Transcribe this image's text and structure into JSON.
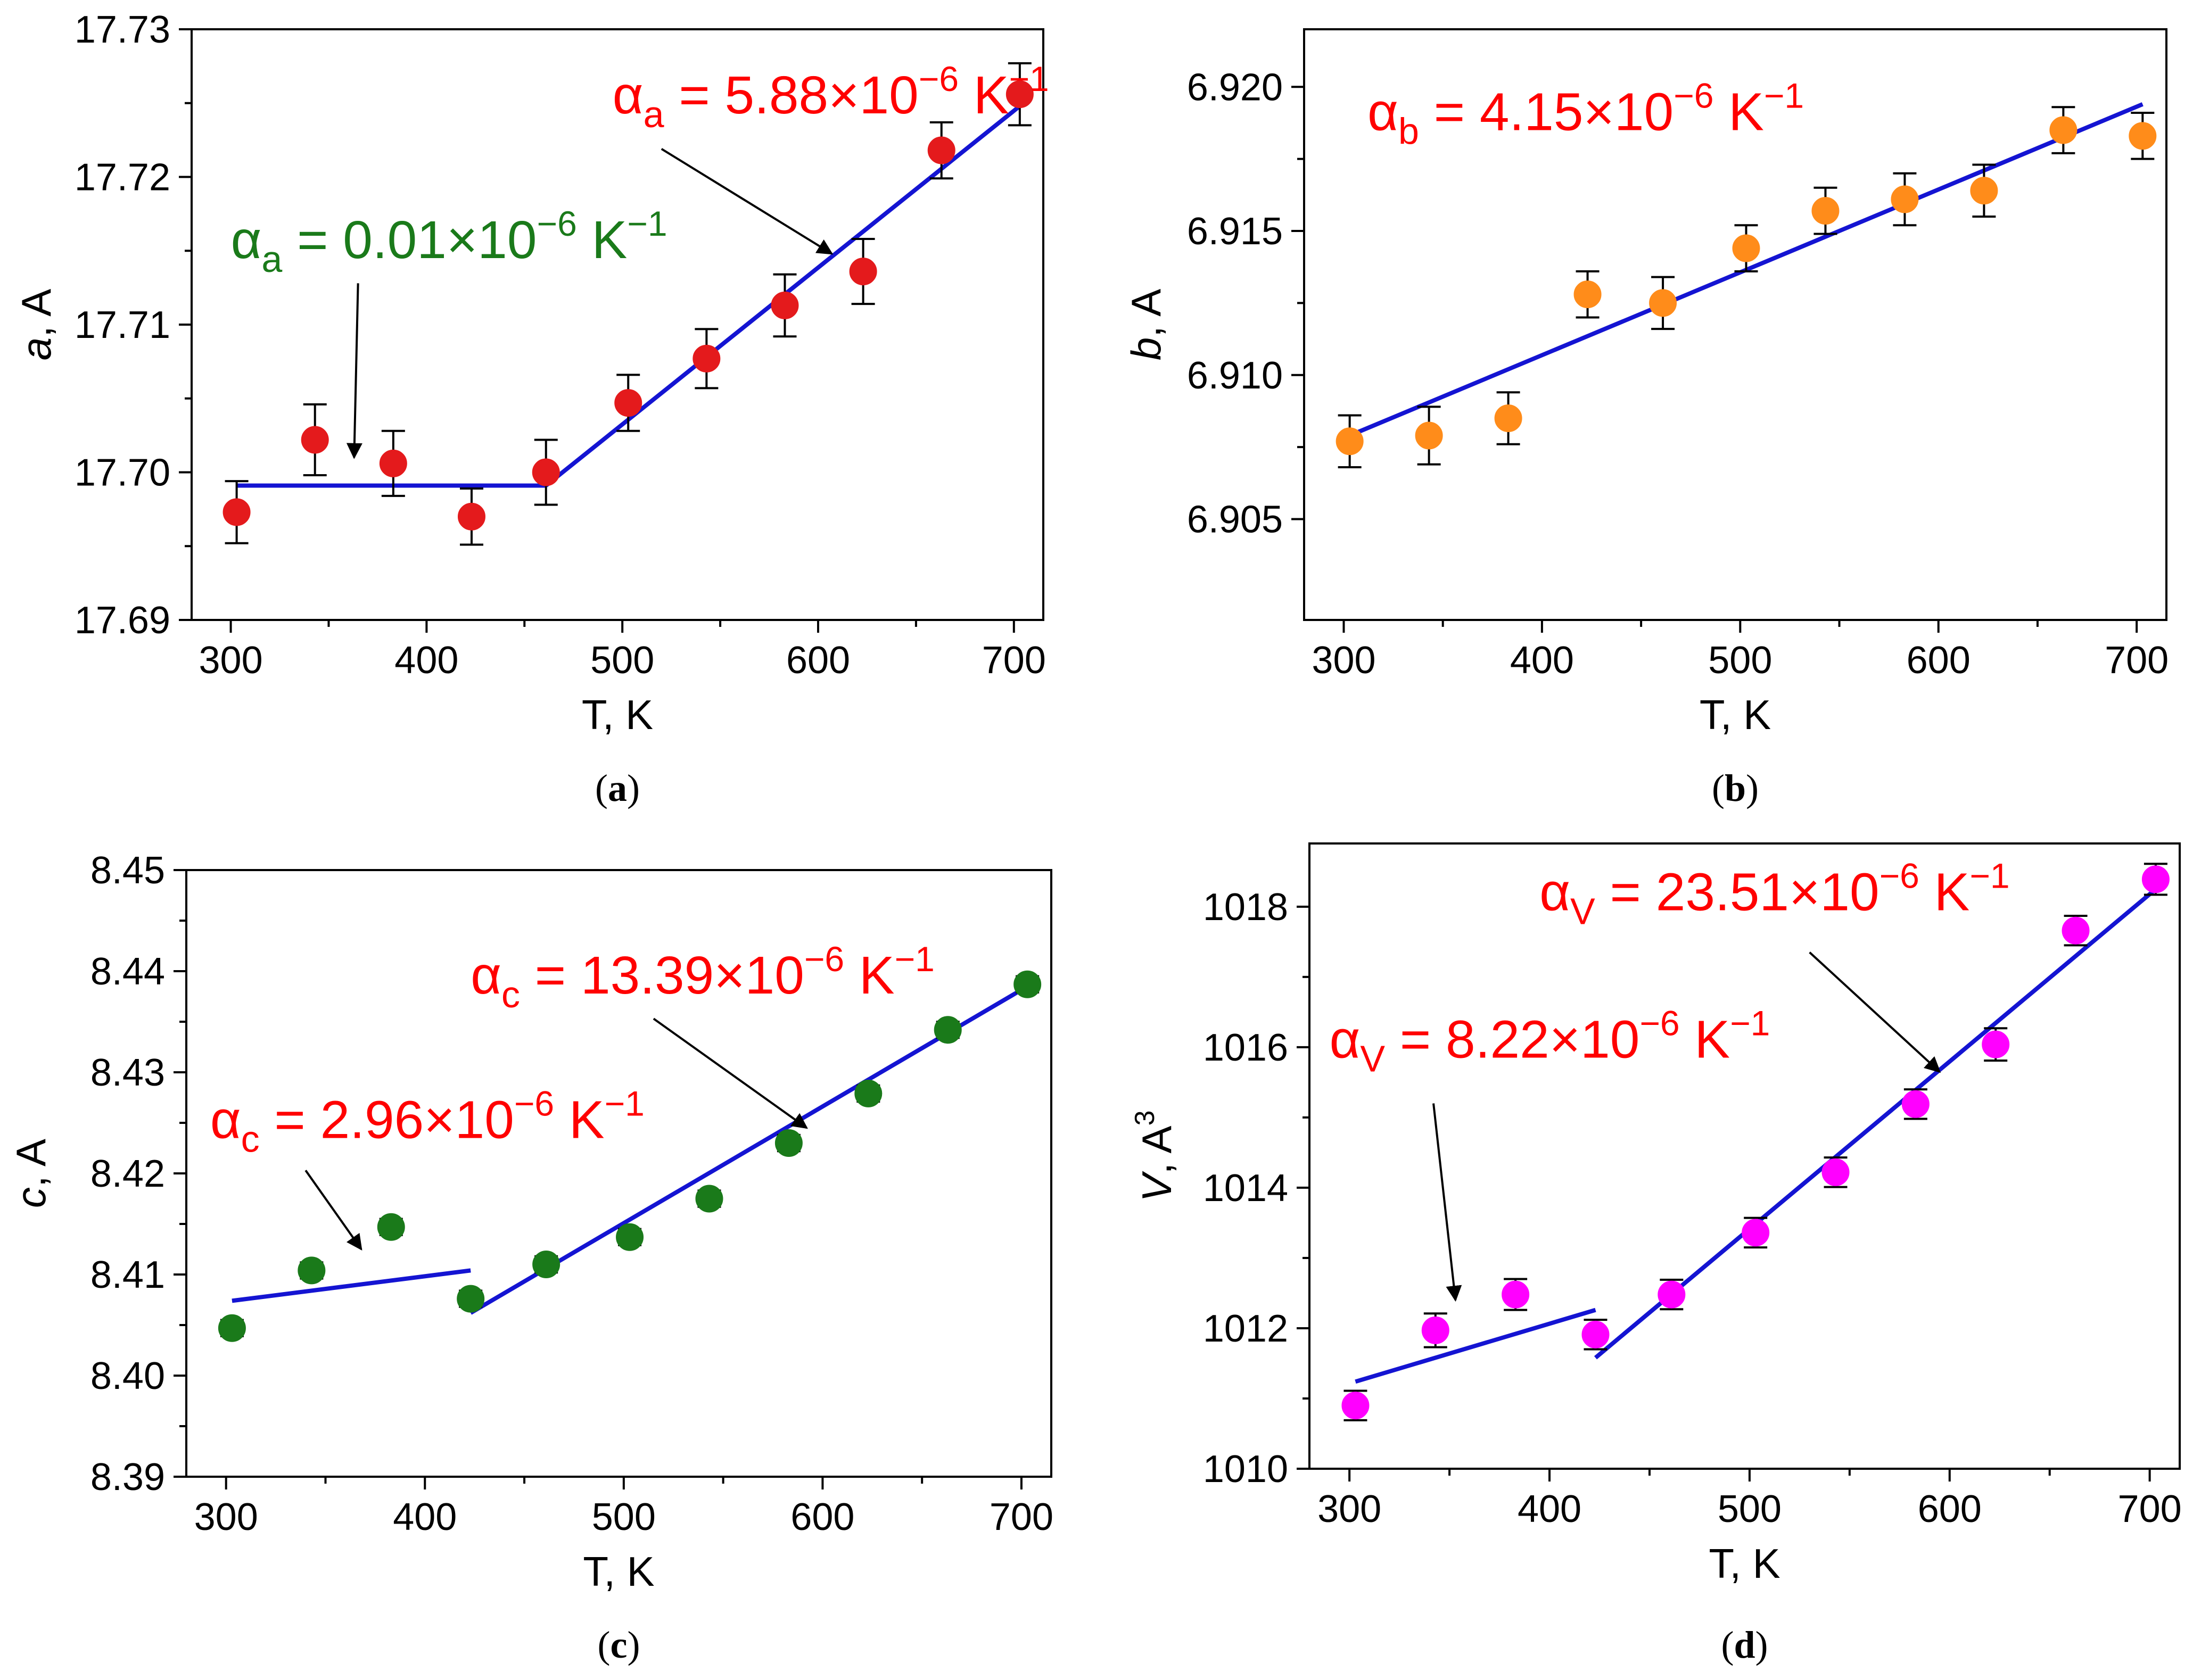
{
  "chart_data": [
    {
      "panel": "a",
      "caption_letter": "a",
      "type": "scatter",
      "xlabel": "T, K",
      "ylabel_var": "a",
      "ylabel_rest": ", A",
      "ylabel_sup": "",
      "xlim": [
        280,
        715
      ],
      "ylim": [
        17.69,
        17.73
      ],
      "xticks": [
        300,
        400,
        500,
        600,
        700
      ],
      "xtick_labels": [
        "300",
        "400",
        "500",
        "600",
        "700"
      ],
      "yticks": [
        17.69,
        17.7,
        17.71,
        17.72,
        17.73
      ],
      "ytick_labels": [
        "17.69",
        "17.70",
        "17.71",
        "17.72",
        "17.73"
      ],
      "marker_color": "#e41a1c",
      "points": [
        {
          "x": 303,
          "y": 17.6973,
          "err": 0.0021
        },
        {
          "x": 343,
          "y": 17.7022,
          "err": 0.0024
        },
        {
          "x": 383,
          "y": 17.7006,
          "err": 0.0022
        },
        {
          "x": 423,
          "y": 17.697,
          "err": 0.0019
        },
        {
          "x": 461,
          "y": 17.7,
          "err": 0.0022
        },
        {
          "x": 503,
          "y": 17.7047,
          "err": 0.0019
        },
        {
          "x": 543,
          "y": 17.7077,
          "err": 0.002
        },
        {
          "x": 583,
          "y": 17.7113,
          "err": 0.0021
        },
        {
          "x": 623,
          "y": 17.7136,
          "err": 0.0022
        },
        {
          "x": 663,
          "y": 17.7218,
          "err": 0.0019
        },
        {
          "x": 703,
          "y": 17.7256,
          "err": 0.0021
        }
      ],
      "fit_color": "#1414d2",
      "fits": [
        {
          "x": [
            303,
            461
          ],
          "y": [
            17.6991,
            17.6991
          ]
        },
        {
          "x": [
            461,
            703
          ],
          "y": [
            17.6991,
            17.7248
          ]
        }
      ],
      "annotations": [
        {
          "symbol": "α",
          "sub": "a",
          "value": " = 0.01×10",
          "exp": "−6",
          "unit": " K",
          "unit_exp": "−1",
          "color": "#1a7a1a",
          "at": [
            300,
            17.7145
          ],
          "arrow_from": [
            365,
            17.7128
          ],
          "arrow_to": [
            363,
            17.701
          ]
        },
        {
          "symbol": "α",
          "sub": "a",
          "value": " = 5.88×10",
          "exp": "−6",
          "unit": " K",
          "unit_exp": "−1",
          "color": "#ff0000",
          "at": [
            495,
            17.7243
          ],
          "arrow_from": [
            520,
            17.7219
          ],
          "arrow_to": [
            607,
            17.7148
          ]
        }
      ]
    },
    {
      "panel": "b",
      "caption_letter": "b",
      "type": "scatter",
      "xlabel": "T, K",
      "ylabel_var": "b",
      "ylabel_rest": ", A",
      "ylabel_sup": "",
      "xlim": [
        280,
        715
      ],
      "ylim": [
        6.9015,
        6.922
      ],
      "xticks": [
        300,
        400,
        500,
        600,
        700
      ],
      "xtick_labels": [
        "300",
        "400",
        "500",
        "600",
        "700"
      ],
      "yticks": [
        6.905,
        6.91,
        6.915,
        6.92
      ],
      "ytick_labels": [
        "6.905",
        "6.910",
        "6.915",
        "6.920"
      ],
      "marker_color": "#ff8c1a",
      "points": [
        {
          "x": 303,
          "y": 6.9077,
          "err": 0.0009
        },
        {
          "x": 343,
          "y": 6.9079,
          "err": 0.001
        },
        {
          "x": 383,
          "y": 6.9085,
          "err": 0.0009
        },
        {
          "x": 423,
          "y": 6.9128,
          "err": 0.0008
        },
        {
          "x": 461,
          "y": 6.9125,
          "err": 0.0009
        },
        {
          "x": 503,
          "y": 6.9144,
          "err": 0.0008
        },
        {
          "x": 543,
          "y": 6.9157,
          "err": 0.0008
        },
        {
          "x": 583,
          "y": 6.9161,
          "err": 0.0009
        },
        {
          "x": 623,
          "y": 6.9164,
          "err": 0.0009
        },
        {
          "x": 663,
          "y": 6.9185,
          "err": 0.0008
        },
        {
          "x": 703,
          "y": 6.9183,
          "err": 0.0008
        }
      ],
      "fit_color": "#1414d2",
      "fits": [
        {
          "x": [
            303,
            703
          ],
          "y": [
            6.9079,
            6.9194
          ]
        }
      ],
      "annotations": [
        {
          "symbol": "α",
          "sub": "b",
          "value": " = 4.15×10",
          "exp": "−6",
          "unit": " K",
          "unit_exp": "−1",
          "color": "#ff0000",
          "at": [
            312,
            6.9185
          ]
        }
      ]
    },
    {
      "panel": "c",
      "caption_letter": "c",
      "type": "scatter",
      "xlabel": "T, K",
      "ylabel_var": "c",
      "ylabel_rest": ", A",
      "ylabel_sup": "",
      "xlim": [
        280,
        715
      ],
      "ylim": [
        8.39,
        8.45
      ],
      "xticks": [
        300,
        400,
        500,
        600,
        700
      ],
      "xtick_labels": [
        "300",
        "400",
        "500",
        "600",
        "700"
      ],
      "yticks": [
        8.39,
        8.4,
        8.41,
        8.42,
        8.43,
        8.44,
        8.45
      ],
      "ytick_labels": [
        "8.39",
        "8.40",
        "8.41",
        "8.42",
        "8.43",
        "8.44",
        "8.45"
      ],
      "marker_color": "#1a7a1a",
      "points": [
        {
          "x": 303,
          "y": 8.4047,
          "err": 0.0008
        },
        {
          "x": 343,
          "y": 8.4104,
          "err": 0.0008
        },
        {
          "x": 383,
          "y": 8.4147,
          "err": 0.0008
        },
        {
          "x": 423,
          "y": 8.4076,
          "err": 0.0008
        },
        {
          "x": 461,
          "y": 8.411,
          "err": 0.0008
        },
        {
          "x": 503,
          "y": 8.4137,
          "err": 0.0008
        },
        {
          "x": 543,
          "y": 8.4175,
          "err": 0.0008
        },
        {
          "x": 583,
          "y": 8.423,
          "err": 0.0008
        },
        {
          "x": 623,
          "y": 8.4279,
          "err": 0.0008
        },
        {
          "x": 663,
          "y": 8.4342,
          "err": 0.0008
        },
        {
          "x": 703,
          "y": 8.4387,
          "err": 0.0008
        }
      ],
      "fit_color": "#1414d2",
      "fits": [
        {
          "x": [
            303,
            423
          ],
          "y": [
            8.4074,
            8.4104
          ]
        },
        {
          "x": [
            423,
            703
          ],
          "y": [
            8.4062,
            8.4385
          ]
        }
      ],
      "annotations": [
        {
          "symbol": "α",
          "sub": "c",
          "value": " = 2.96×10",
          "exp": "−6",
          "unit": " K",
          "unit_exp": "−1",
          "color": "#ff0000",
          "at": [
            292,
            8.4235
          ],
          "arrow_from": [
            340,
            8.4203
          ],
          "arrow_to": [
            368,
            8.4125
          ]
        },
        {
          "symbol": "α",
          "sub": "c",
          "value": " = 13.39×10",
          "exp": "−6",
          "unit": " K",
          "unit_exp": "−1",
          "color": "#ff0000",
          "at": [
            423,
            8.4378
          ],
          "arrow_from": [
            515,
            8.4353
          ],
          "arrow_to": [
            592,
            8.4245
          ]
        }
      ]
    },
    {
      "panel": "d",
      "caption_letter": "d",
      "type": "scatter",
      "xlabel": "T, K",
      "ylabel_var": "V",
      "ylabel_rest": ", A",
      "ylabel_sup": "3",
      "xlim": [
        280,
        715
      ],
      "ylim": [
        1010,
        1018.9
      ],
      "xticks": [
        300,
        400,
        500,
        600,
        700
      ],
      "xtick_labels": [
        "300",
        "400",
        "500",
        "600",
        "700"
      ],
      "yticks": [
        1010,
        1012,
        1014,
        1016,
        1018
      ],
      "ytick_labels": [
        "1010",
        "1012",
        "1014",
        "1016",
        "1018"
      ],
      "marker_color": "#ff00ff",
      "points": [
        {
          "x": 303,
          "y": 1010.9,
          "err": 0.21
        },
        {
          "x": 343,
          "y": 1011.97,
          "err": 0.24
        },
        {
          "x": 383,
          "y": 1012.48,
          "err": 0.22
        },
        {
          "x": 423,
          "y": 1011.91,
          "err": 0.21
        },
        {
          "x": 461,
          "y": 1012.48,
          "err": 0.21
        },
        {
          "x": 503,
          "y": 1013.36,
          "err": 0.21
        },
        {
          "x": 543,
          "y": 1014.22,
          "err": 0.21
        },
        {
          "x": 583,
          "y": 1015.19,
          "err": 0.21
        },
        {
          "x": 623,
          "y": 1016.04,
          "err": 0.23
        },
        {
          "x": 663,
          "y": 1017.66,
          "err": 0.21
        },
        {
          "x": 703,
          "y": 1018.39,
          "err": 0.22
        }
      ],
      "fit_color": "#1414d2",
      "fits": [
        {
          "x": [
            303,
            423
          ],
          "y": [
            1011.24,
            1012.26
          ]
        },
        {
          "x": [
            423,
            703
          ],
          "y": [
            1011.58,
            1018.25
          ]
        }
      ],
      "annotations": [
        {
          "symbol": "α",
          "sub": "V",
          "value": " = 8.22×10",
          "exp": "−6",
          "unit": " K",
          "unit_exp": "−1",
          "color": "#ff0000",
          "at": [
            290,
            1015.85
          ],
          "arrow_from": [
            342,
            1015.2
          ],
          "arrow_to": [
            353,
            1012.4
          ]
        },
        {
          "symbol": "α",
          "sub": "V",
          "value": " = 23.51×10",
          "exp": "−6",
          "unit": " K",
          "unit_exp": "−1",
          "color": "#ff0000",
          "at": [
            395,
            1017.95
          ],
          "arrow_from": [
            530,
            1017.35
          ],
          "arrow_to": [
            595,
            1015.65
          ]
        }
      ]
    }
  ]
}
